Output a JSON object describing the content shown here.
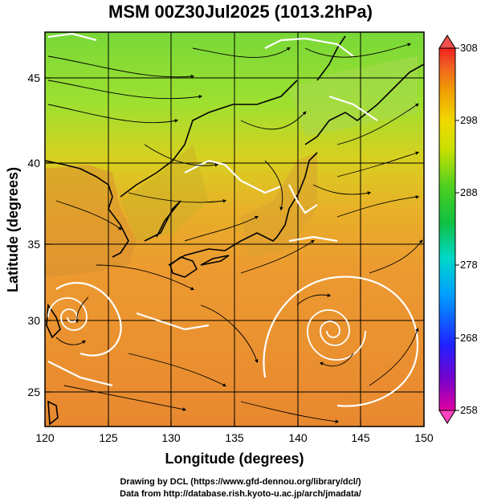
{
  "title": "MSM 00Z30Jul2025 (1013.2hPa)",
  "x_axis": {
    "label": "Longitude (degrees)",
    "ticks": [
      "120",
      "125",
      "130",
      "135",
      "140",
      "145",
      "150"
    ]
  },
  "y_axis": {
    "label": "Latitude (degrees)",
    "ticks": [
      "25",
      "30",
      "35",
      "40",
      "45"
    ]
  },
  "colorbar": {
    "min": 258,
    "max": 308,
    "ticks": [
      "308",
      "298",
      "288",
      "278",
      "268",
      "258"
    ],
    "colors": [
      "#e0009e",
      "#6a00c8",
      "#1414ff",
      "#0090ff",
      "#00e0e0",
      "#00c060",
      "#30d030",
      "#a0e000",
      "#e0e000",
      "#f0b000",
      "#f07000",
      "#f02020"
    ]
  },
  "footer": {
    "line1": "Drawing by DCL (https://www.gfd-dennou.org/library/dcl/)",
    "line2": "Data from http://database.rish.kyoto-u.ac.jp/arch/jmadata/"
  },
  "map_colors": {
    "north": "#7fd83a",
    "mid": "#d8c818",
    "south": "#e89030",
    "land": "#b07828"
  }
}
